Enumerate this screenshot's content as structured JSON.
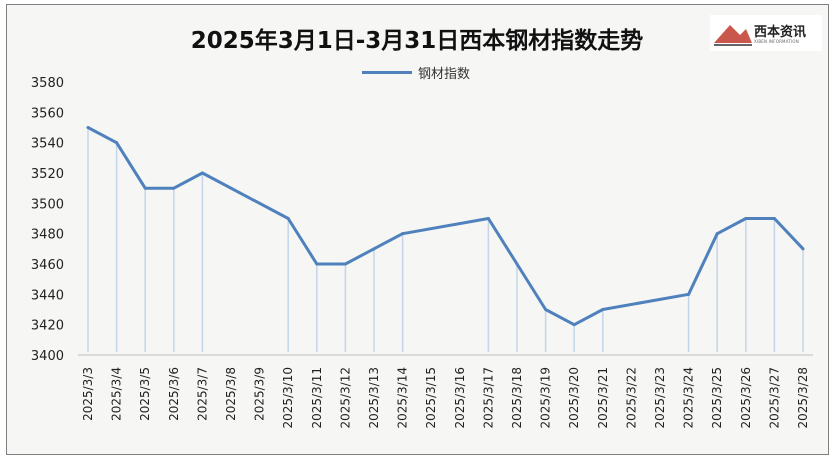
{
  "chart_data": {
    "type": "line",
    "title": "2025年3月1日-3月31日西本钢材指数走势",
    "categories": [
      "2025/3/3",
      "2025/3/4",
      "2025/3/5",
      "2025/3/6",
      "2025/3/7",
      "2025/3/8",
      "2025/3/9",
      "2025/3/10",
      "2025/3/11",
      "2025/3/12",
      "2025/3/13",
      "2025/3/14",
      "2025/3/15",
      "2025/3/16",
      "2025/3/17",
      "2025/3/18",
      "2025/3/19",
      "2025/3/20",
      "2025/3/21",
      "2025/3/22",
      "2025/3/23",
      "2025/3/24",
      "2025/3/25",
      "2025/3/26",
      "2025/3/27",
      "2025/3/28"
    ],
    "series": [
      {
        "name": "钢材指数",
        "color": "#4f81bd",
        "points": [
          {
            "x": "2025/3/3",
            "y": 3550
          },
          {
            "x": "2025/3/4",
            "y": 3540
          },
          {
            "x": "2025/3/5",
            "y": 3510
          },
          {
            "x": "2025/3/6",
            "y": 3510
          },
          {
            "x": "2025/3/7",
            "y": 3520
          },
          {
            "x": "2025/3/10",
            "y": 3490
          },
          {
            "x": "2025/3/11",
            "y": 3460
          },
          {
            "x": "2025/3/12",
            "y": 3460
          },
          {
            "x": "2025/3/13",
            "y": 3470
          },
          {
            "x": "2025/3/14",
            "y": 3480
          },
          {
            "x": "2025/3/17",
            "y": 3490
          },
          {
            "x": "2025/3/18",
            "y": 3460
          },
          {
            "x": "2025/3/19",
            "y": 3430
          },
          {
            "x": "2025/3/20",
            "y": 3420
          },
          {
            "x": "2025/3/21",
            "y": 3430
          },
          {
            "x": "2025/3/24",
            "y": 3440
          },
          {
            "x": "2025/3/25",
            "y": 3480
          },
          {
            "x": "2025/3/26",
            "y": 3490
          },
          {
            "x": "2025/3/27",
            "y": 3490
          },
          {
            "x": "2025/3/28",
            "y": 3470
          }
        ]
      }
    ],
    "yticks": [
      3400,
      3420,
      3440,
      3460,
      3480,
      3500,
      3520,
      3540,
      3560,
      3580
    ],
    "ylim": [
      3400,
      3580
    ],
    "grid": false,
    "drop_lines": true,
    "legend": "top-center"
  },
  "logo": {
    "text": "西本资讯",
    "subtext": "XIBEN INFORMATION",
    "color": "#c0392b"
  }
}
